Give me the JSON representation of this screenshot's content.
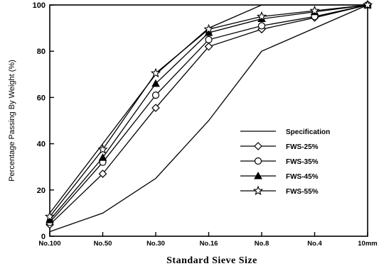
{
  "chart_data": {
    "type": "line",
    "title": "",
    "xlabel": "Standard Sieve Size",
    "ylabel": "Percentage Passing By Weight (%)",
    "categories": [
      "No.100",
      "No.50",
      "No.30",
      "No.16",
      "No.8",
      "No.4",
      "10mm"
    ],
    "yticks": [
      0,
      20,
      40,
      60,
      80,
      100
    ],
    "ylim": [
      0,
      100
    ],
    "grid": false,
    "legend_position": "center-right",
    "specification": {
      "name": "Specification",
      "lower": [
        2,
        10,
        25,
        50,
        80,
        90,
        100
      ],
      "upper": [
        10,
        40,
        70,
        90,
        100,
        100,
        100
      ]
    },
    "series": [
      {
        "name": "FWS-25%",
        "marker": "diamond",
        "values": [
          5,
          27,
          55.5,
          82,
          89.5,
          94.5,
          100
        ]
      },
      {
        "name": "FWS-35%",
        "marker": "circle",
        "values": [
          6,
          32,
          61,
          85,
          91,
          95,
          100
        ]
      },
      {
        "name": "FWS-45%",
        "marker": "triangle",
        "values": [
          7,
          34,
          66,
          88,
          94,
          97,
          100
        ]
      },
      {
        "name": "FWS-55%",
        "marker": "star",
        "values": [
          8.5,
          37.5,
          70.5,
          89.5,
          95,
          97.5,
          100
        ]
      }
    ]
  }
}
